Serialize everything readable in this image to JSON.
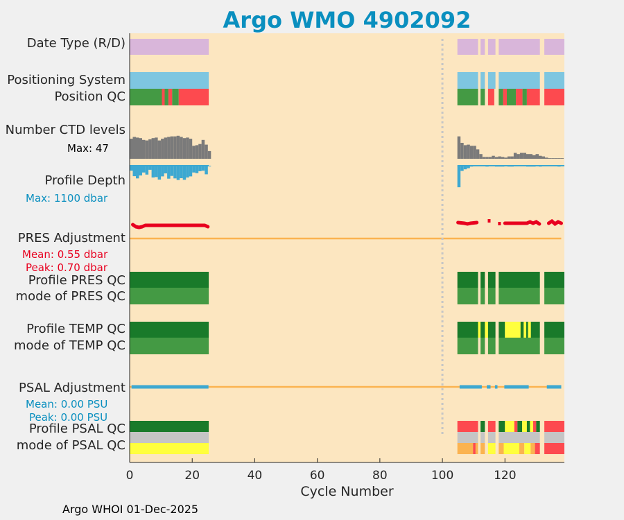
{
  "title": "Argo WMO 4902092",
  "footer": "Argo WHOI 01-Dec-2025",
  "colors": {
    "background": "#fce6c0",
    "lavender": "#d9b6da",
    "skyblue": "#7ec6e0",
    "green": "#449a44",
    "darkgreen": "#197a2a",
    "red": "#fd4a4f",
    "gray": "#7a7a7a",
    "cyan": "#3da8d1",
    "crimson": "#e8001f",
    "orange": "#fbb350",
    "yellow": "#ffff3e",
    "silver": "#c5c5c5",
    "title": "#0a8fbf"
  },
  "chart_data": {
    "type": "timeline",
    "xlabel": "Cycle Number",
    "xlim": [
      0,
      139
    ],
    "xticks": [
      0,
      20,
      40,
      60,
      80,
      100,
      120
    ],
    "marker_cycle": 100,
    "labels": {
      "date_type": "Date Type (R/D)",
      "positioning_system": "Positioning System",
      "position_qc": "Position QC",
      "ctd_levels": "Number CTD levels",
      "ctd_max": "Max: 47",
      "profile_depth": "Profile Depth",
      "depth_max": "Max: 1100 dbar",
      "pres_adjustment": "PRES Adjustment",
      "pres_mean": "Mean: 0.55 dbar",
      "pres_peak": "Peak: 0.70 dbar",
      "profile_pres_qc": "Profile PRES QC",
      "mode_pres_qc": "mode of PRES QC",
      "profile_temp_qc": "Profile TEMP QC",
      "mode_temp_qc": "mode of TEMP QC",
      "psal_adjustment": "PSAL Adjustment",
      "psal_mean": "Mean: 0.00 PSU",
      "psal_peak": "Peak: 0.00 PSU",
      "profile_psal_qc": "Profile PSAL QC",
      "mode_psal_qc": "mode of PSAL QC"
    },
    "ctd_levels": {
      "max": 47,
      "first": [
        34,
        37,
        36,
        35,
        32,
        31,
        33,
        35,
        36,
        31,
        34,
        36,
        37,
        38,
        38,
        39,
        37,
        35,
        36,
        34,
        22,
        23,
        25,
        32,
        24,
        13
      ],
      "second": [
        38,
        27,
        23,
        24,
        22,
        22,
        16,
        8,
        3,
        3,
        3,
        5,
        3,
        4,
        3,
        2,
        4,
        4,
        10,
        8,
        10,
        10,
        8,
        8,
        6,
        8,
        5,
        4,
        2,
        1,
        1,
        1,
        1,
        1
      ]
    },
    "profile_depth": {
      "max": 1100,
      "first": [
        220,
        460,
        560,
        430,
        300,
        390,
        180,
        520,
        500,
        610,
        470,
        340,
        570,
        450,
        560,
        630,
        550,
        620,
        520,
        470,
        300,
        330,
        240,
        220,
        380,
        20
      ],
      "second": [
        950,
        230,
        160,
        110,
        40,
        30,
        30,
        20,
        20,
        40,
        20,
        20,
        40,
        40,
        40,
        30,
        40,
        40,
        30,
        30,
        30,
        30,
        40,
        40,
        40,
        30,
        40,
        30,
        30,
        30,
        30,
        30,
        40,
        30
      ]
    },
    "pres_adjustment": {
      "mean": 0.55,
      "peak": 0.7
    },
    "psal_adjustment": {
      "mean": 0.0,
      "peak": 0.0
    }
  }
}
